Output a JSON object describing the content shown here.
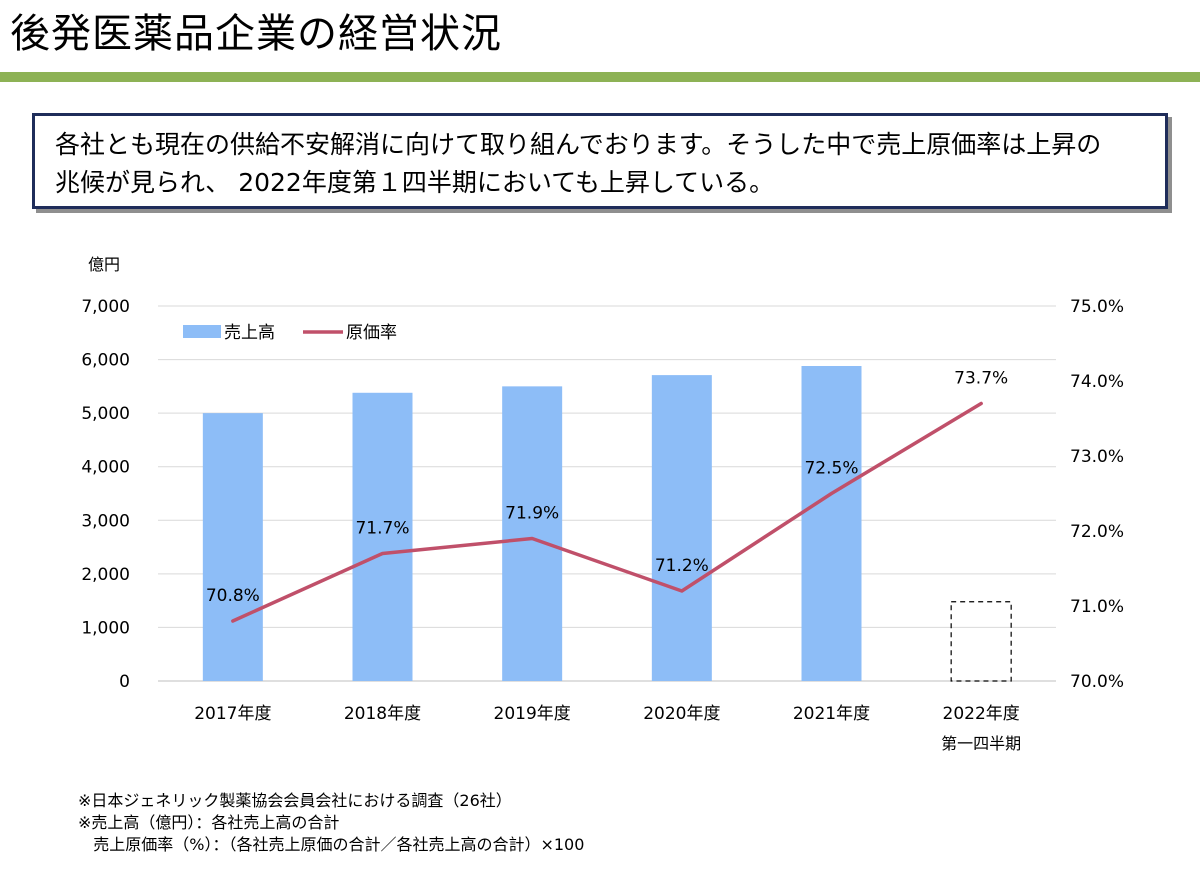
{
  "page": {
    "title": "後発医薬品企業の経営状況",
    "summary_lines": [
      "各社とも現在の供給不安解消に向けて取り組んでおります。そうした中で売上原価率は上昇の",
      "兆候が見られ、 2022年度第１四半期においても上昇している。"
    ],
    "notes": [
      "※日本ジェネリック製薬協会会員会社における調査（26社）",
      "※売上高（億円）：各社売上高の合計",
      "   売上原価率（%）：（各社売上原価の合計／各社売上高の合計）×100"
    ],
    "accent_color": "#8db255",
    "box_border_color": "#1f2d5a"
  },
  "chart_data": {
    "type": "bar",
    "categories": [
      "2017年度",
      "2018年度",
      "2019年度",
      "2020年度",
      "2021年度",
      "2022年度"
    ],
    "category_sublabels": [
      "",
      "",
      "",
      "",
      "",
      "第一四半期"
    ],
    "y_unit_label": "億円",
    "ylim": [
      0,
      7000
    ],
    "yticks": [
      0,
      1000,
      2000,
      3000,
      4000,
      5000,
      6000,
      7000
    ],
    "ytick_labels": [
      "0",
      "1,000",
      "2,000",
      "3,000",
      "4,000",
      "5,000",
      "6,000",
      "7,000"
    ],
    "y2lim": [
      70.0,
      75.0
    ],
    "y2ticks": [
      70.0,
      71.0,
      72.0,
      73.0,
      74.0,
      75.0
    ],
    "y2tick_labels": [
      "70.0%",
      "71.0%",
      "72.0%",
      "73.0%",
      "74.0%",
      "75.0%"
    ],
    "grid": true,
    "legend_position": "top-left",
    "series": [
      {
        "name": "売上高",
        "type": "bar",
        "axis": "left",
        "color": "#8dbdf7",
        "values": [
          5000,
          5380,
          5500,
          5710,
          5880,
          1480
        ],
        "dashed_last": true
      },
      {
        "name": "原価率",
        "type": "line",
        "axis": "right",
        "color": "#c0506a",
        "values": [
          70.8,
          71.7,
          71.9,
          71.2,
          72.5,
          73.7
        ],
        "data_labels": [
          "70.8%",
          "71.7%",
          "71.9%",
          "71.2%",
          "72.5%",
          "73.7%"
        ]
      }
    ]
  }
}
